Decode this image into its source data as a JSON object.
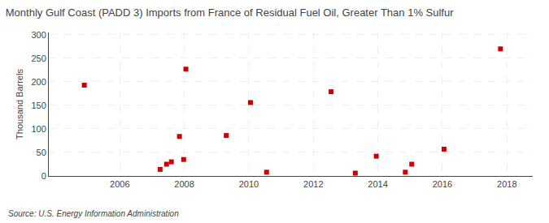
{
  "chart_data": {
    "type": "scatter",
    "title": "Monthly Gulf Coast (PADD 3) Imports from France of Residual Fuel Oil, Greater Than 1% Sulfur",
    "ylabel": "Thousand Barrels",
    "annotations": [
      "Source: U.S. Energy Information Administration"
    ],
    "x": [
      2004.9,
      2007.25,
      2007.45,
      2007.6,
      2007.85,
      2007.98,
      2008.05,
      2009.3,
      2010.05,
      2010.55,
      2012.55,
      2013.3,
      2013.95,
      2014.85,
      2015.05,
      2016.05,
      2017.8
    ],
    "values": [
      193,
      14,
      25,
      30,
      84,
      35,
      227,
      86,
      156,
      8,
      179,
      6,
      42,
      8,
      25,
      57,
      270
    ],
    "color": "#cc0000",
    "marker": "square",
    "xlim": [
      2003.8,
      2018.8
    ],
    "ylim": [
      0,
      305
    ],
    "xticks": [
      2006,
      2008,
      2010,
      2012,
      2014,
      2016,
      2018
    ],
    "yticks": [
      0,
      50,
      100,
      150,
      200,
      250,
      300
    ],
    "grid": true
  }
}
